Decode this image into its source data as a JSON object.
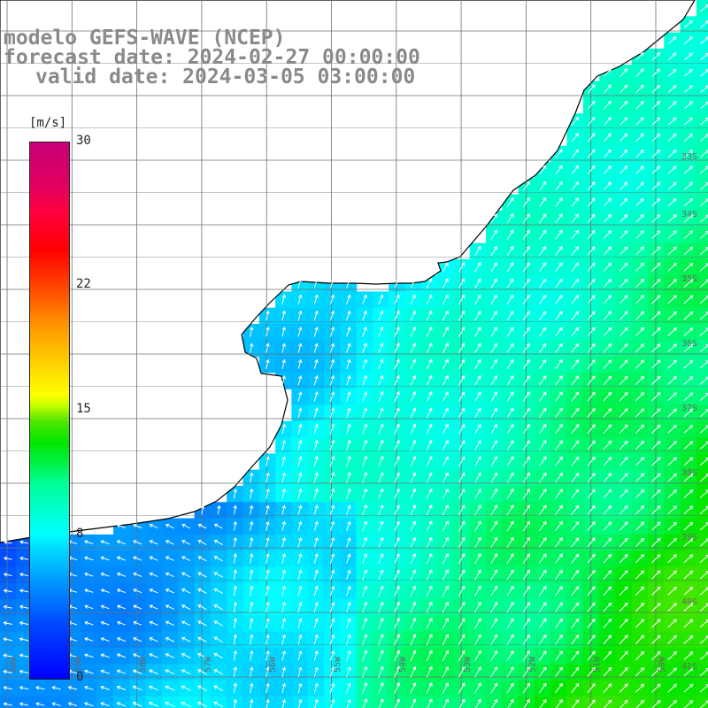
{
  "title": {
    "line1": "modelo GEFS-WAVE (NCEP)",
    "line2": "forecast date: 2024-02-27 00:00:00",
    "line3": "valid date: 2024-03-05 03:00:00"
  },
  "colorbar": {
    "units": "[m/s]",
    "ticks": [
      {
        "value": 30,
        "label": "30"
      },
      {
        "value": 22,
        "label": "22"
      },
      {
        "value": 15,
        "label": "15"
      },
      {
        "value": 8,
        "label": "8"
      },
      {
        "value": 0,
        "label": "0"
      }
    ],
    "min": 0,
    "max": 30
  },
  "axes": {
    "lon_labels": [
      "60W",
      "59W",
      "58W",
      "57W",
      "56W",
      "55W",
      "54W",
      "53W",
      "52W",
      "51W",
      "50W"
    ],
    "lat_labels": [
      "33S",
      "34S",
      "35S",
      "36S",
      "37S",
      "38S",
      "39S",
      "40S",
      "41S"
    ],
    "lon_range": [
      -60.3,
      -49.6
    ],
    "lat_range": [
      -41.2,
      -30.8
    ]
  },
  "colors": {
    "land": "#ffffff",
    "grid": "#707070",
    "coast": "#000000",
    "arrows": "#ffffff"
  }
}
